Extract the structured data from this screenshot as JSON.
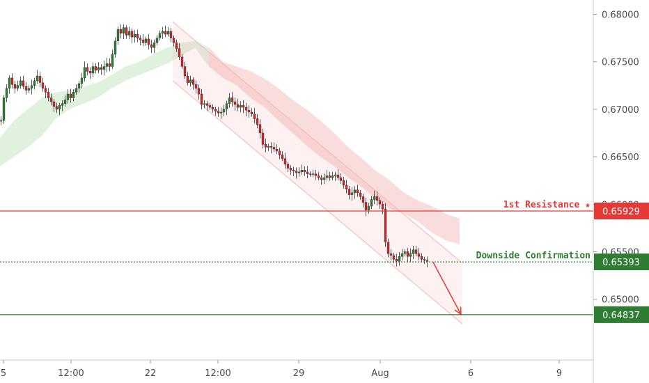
{
  "chart_data": {
    "type": "candlestick",
    "title": "",
    "xlabel": "",
    "ylabel": "",
    "ylim": [
      0.6436,
      0.6815
    ],
    "x_ticks": [
      "5",
      "12:00",
      "22",
      "12:00",
      "29",
      "Aug",
      "6",
      "9"
    ],
    "y_ticks": [
      "0.68000",
      "0.67500",
      "0.67000",
      "0.66500",
      "0.66000",
      "0.65500",
      "0.65000"
    ],
    "y_tick_values": [
      0.68,
      0.675,
      0.67,
      0.665,
      0.66,
      0.655,
      0.65
    ],
    "grid": false,
    "colors": {
      "up": "#2e7d32",
      "down": "#c62828",
      "resistance": "#e53935",
      "support": "#2e7d32",
      "channel": "#f3b6b6"
    },
    "levels": [
      {
        "name": "1st Resistance ★",
        "value": 0.65929,
        "value_label": "0.65929",
        "color": "#e53935",
        "style": "solid"
      },
      {
        "name": "Downside Confirmation",
        "value": 0.65393,
        "value_label": "0.65393",
        "color": "#2e7d32",
        "style": "dotted"
      },
      {
        "name": "",
        "value": 0.64837,
        "value_label": "0.64837",
        "color": "#2e7d32",
        "style": "solid"
      }
    ],
    "price_path": [
      [
        0,
        0.6688
      ],
      [
        4,
        0.6712
      ],
      [
        8,
        0.6722
      ],
      [
        12,
        0.6733
      ],
      [
        16,
        0.6726
      ],
      [
        20,
        0.6722
      ],
      [
        24,
        0.6725
      ],
      [
        28,
        0.673
      ],
      [
        32,
        0.6724
      ],
      [
        36,
        0.672
      ],
      [
        40,
        0.6722
      ],
      [
        44,
        0.6725
      ],
      [
        48,
        0.673
      ],
      [
        52,
        0.6735
      ],
      [
        56,
        0.6728
      ],
      [
        60,
        0.6722
      ],
      [
        64,
        0.6718
      ],
      [
        68,
        0.6712
      ],
      [
        72,
        0.6708
      ],
      [
        76,
        0.6703
      ],
      [
        80,
        0.67
      ],
      [
        84,
        0.6704
      ],
      [
        88,
        0.6706
      ],
      [
        92,
        0.671
      ],
      [
        96,
        0.6716
      ],
      [
        100,
        0.6712
      ],
      [
        104,
        0.6718
      ],
      [
        108,
        0.6722
      ],
      [
        112,
        0.6727
      ],
      [
        116,
        0.6733
      ],
      [
        120,
        0.6744
      ],
      [
        124,
        0.674
      ],
      [
        128,
        0.6738
      ],
      [
        132,
        0.6745
      ],
      [
        136,
        0.6741
      ],
      [
        140,
        0.6744
      ],
      [
        144,
        0.6742
      ],
      [
        148,
        0.6745
      ],
      [
        152,
        0.6748
      ],
      [
        156,
        0.6745
      ],
      [
        160,
        0.6758
      ],
      [
        164,
        0.6772
      ],
      [
        168,
        0.6784
      ],
      [
        172,
        0.678
      ],
      [
        176,
        0.6786
      ],
      [
        180,
        0.6778
      ],
      [
        184,
        0.6782
      ],
      [
        188,
        0.6776
      ],
      [
        192,
        0.6779
      ],
      [
        196,
        0.6775
      ],
      [
        200,
        0.6773
      ],
      [
        204,
        0.677
      ],
      [
        208,
        0.6774
      ],
      [
        212,
        0.6768
      ],
      [
        216,
        0.6765
      ],
      [
        220,
        0.677
      ],
      [
        224,
        0.6775
      ],
      [
        228,
        0.678
      ],
      [
        232,
        0.6782
      ],
      [
        236,
        0.6779
      ],
      [
        240,
        0.6782
      ],
      [
        244,
        0.6775
      ],
      [
        248,
        0.677
      ],
      [
        252,
        0.6764
      ],
      [
        256,
        0.6755
      ],
      [
        260,
        0.6745
      ],
      [
        264,
        0.6735
      ],
      [
        268,
        0.6728
      ],
      [
        272,
        0.6731
      ],
      [
        276,
        0.6726
      ],
      [
        280,
        0.6722
      ],
      [
        284,
        0.6716
      ],
      [
        288,
        0.6705
      ],
      [
        292,
        0.6706
      ],
      [
        296,
        0.6704
      ],
      [
        300,
        0.6702
      ],
      [
        304,
        0.67
      ],
      [
        308,
        0.6698
      ],
      [
        312,
        0.6696
      ],
      [
        316,
        0.6697
      ],
      [
        320,
        0.67
      ],
      [
        324,
        0.6706
      ],
      [
        328,
        0.6712
      ],
      [
        332,
        0.6708
      ],
      [
        336,
        0.6705
      ],
      [
        340,
        0.6702
      ],
      [
        344,
        0.6704
      ],
      [
        348,
        0.6702
      ],
      [
        352,
        0.6699
      ],
      [
        356,
        0.6697
      ],
      [
        360,
        0.6695
      ],
      [
        364,
        0.669
      ],
      [
        368,
        0.6684
      ],
      [
        372,
        0.6675
      ],
      [
        376,
        0.6663
      ],
      [
        380,
        0.666
      ],
      [
        384,
        0.6661
      ],
      [
        388,
        0.666
      ],
      [
        392,
        0.6658
      ],
      [
        396,
        0.6656
      ],
      [
        400,
        0.6652
      ],
      [
        404,
        0.6648
      ],
      [
        408,
        0.6642
      ],
      [
        412,
        0.6638
      ],
      [
        416,
        0.6636
      ],
      [
        420,
        0.6635
      ],
      [
        424,
        0.6633
      ],
      [
        428,
        0.6634
      ],
      [
        432,
        0.6636
      ],
      [
        436,
        0.6634
      ],
      [
        440,
        0.6632
      ],
      [
        444,
        0.6632
      ],
      [
        448,
        0.6632
      ],
      [
        452,
        0.663
      ],
      [
        456,
        0.6628
      ],
      [
        460,
        0.6626
      ],
      [
        464,
        0.6628
      ],
      [
        468,
        0.663
      ],
      [
        472,
        0.6628
      ],
      [
        476,
        0.663
      ],
      [
        480,
        0.6631
      ],
      [
        484,
        0.6628
      ],
      [
        488,
        0.6625
      ],
      [
        492,
        0.662
      ],
      [
        496,
        0.6616
      ],
      [
        500,
        0.661
      ],
      [
        504,
        0.6612
      ],
      [
        508,
        0.6615
      ],
      [
        512,
        0.6612
      ],
      [
        516,
        0.6608
      ],
      [
        520,
        0.6602
      ],
      [
        524,
        0.6594
      ],
      [
        528,
        0.6598
      ],
      [
        532,
        0.6605
      ],
      [
        536,
        0.6608
      ],
      [
        540,
        0.6604
      ],
      [
        544,
        0.66
      ],
      [
        548,
        0.6595
      ],
      [
        552,
        0.656
      ],
      [
        556,
        0.6548
      ],
      [
        560,
        0.6546
      ],
      [
        564,
        0.6542
      ],
      [
        568,
        0.654
      ],
      [
        572,
        0.6545
      ],
      [
        576,
        0.6548
      ],
      [
        580,
        0.655
      ],
      [
        584,
        0.6545
      ],
      [
        588,
        0.6548
      ],
      [
        592,
        0.6552
      ],
      [
        596,
        0.6548
      ],
      [
        600,
        0.6545
      ],
      [
        604,
        0.6542
      ],
      [
        608,
        0.6541
      ],
      [
        612,
        0.654
      ]
    ],
    "channel": {
      "upper": [
        [
          248,
          0.6792
        ],
        [
          664,
          0.6538
        ]
      ],
      "lower": [
        [
          248,
          0.673
        ],
        [
          664,
          0.6474
        ]
      ]
    },
    "cloud": [
      [
        0,
        0.664,
        0.667
      ],
      [
        20,
        0.665,
        0.6688
      ],
      [
        40,
        0.666,
        0.67
      ],
      [
        60,
        0.6672,
        0.6712
      ],
      [
        80,
        0.669,
        0.6718
      ],
      [
        100,
        0.67,
        0.672
      ],
      [
        120,
        0.6706,
        0.6724
      ],
      [
        140,
        0.6712,
        0.6728
      ],
      [
        160,
        0.6722,
        0.6736
      ],
      [
        180,
        0.673,
        0.6745
      ],
      [
        200,
        0.6736,
        0.675
      ],
      [
        220,
        0.6742,
        0.6758
      ],
      [
        240,
        0.6748,
        0.6765
      ],
      [
        260,
        0.6756,
        0.677
      ],
      [
        280,
        0.6765,
        0.6772
      ],
      [
        300,
        0.6745,
        0.6765
      ],
      [
        320,
        0.6733,
        0.675
      ],
      [
        340,
        0.6725,
        0.6745
      ],
      [
        360,
        0.6712,
        0.674
      ],
      [
        380,
        0.6702,
        0.6732
      ],
      [
        400,
        0.6688,
        0.6722
      ],
      [
        420,
        0.6675,
        0.671
      ],
      [
        440,
        0.6662,
        0.67
      ],
      [
        460,
        0.665,
        0.6688
      ],
      [
        480,
        0.664,
        0.6675
      ],
      [
        500,
        0.6628,
        0.666
      ],
      [
        520,
        0.6618,
        0.6648
      ],
      [
        540,
        0.6605,
        0.6635
      ],
      [
        560,
        0.6595,
        0.6625
      ],
      [
        580,
        0.659,
        0.6612
      ],
      [
        600,
        0.6582,
        0.6604
      ],
      [
        620,
        0.657,
        0.6598
      ],
      [
        640,
        0.6562,
        0.659
      ],
      [
        660,
        0.6558,
        0.6585
      ]
    ],
    "projection": {
      "from": [
        622,
        0.6539
      ],
      "to": [
        662,
        0.6484
      ]
    }
  }
}
